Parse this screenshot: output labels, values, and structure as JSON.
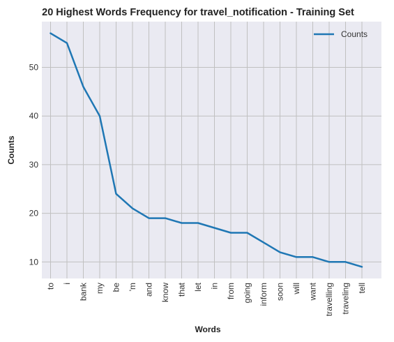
{
  "chart_data": {
    "type": "line",
    "title": "20 Highest Words Frequency for travel_notification - Training Set",
    "xlabel": "Words",
    "ylabel": "Counts",
    "categories": [
      "to",
      "i",
      "bank",
      "my",
      "be",
      "'m",
      "and",
      "know",
      "that",
      "let",
      "in",
      "from",
      "going",
      "inform",
      "soon",
      "will",
      "want",
      "travelling",
      "traveling",
      "tell"
    ],
    "series": [
      {
        "name": "Counts",
        "color": "#1f77b4",
        "values": [
          57,
          55,
          46,
          40,
          24,
          21,
          19,
          19,
          18,
          18,
          17,
          16,
          16,
          14,
          12,
          11,
          11,
          10,
          10,
          9
        ]
      }
    ],
    "ylim": [
      6.6,
      59.4
    ],
    "yticks": [
      10,
      20,
      30,
      40,
      50
    ],
    "grid": true,
    "legend": "top-right",
    "background_color": "#eaeaf2",
    "grid_color": "#c0c0c0"
  }
}
